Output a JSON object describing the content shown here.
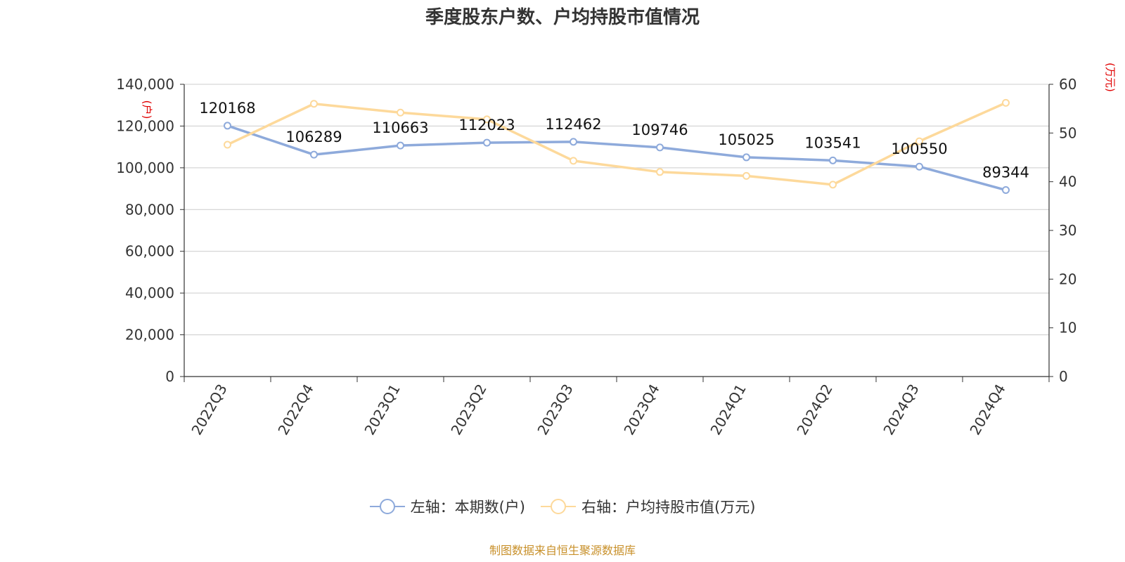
{
  "chart_data": {
    "type": "line",
    "title": "季度股东户数、户均持股市值情况",
    "categories": [
      "2022Q3",
      "2022Q4",
      "2023Q1",
      "2023Q2",
      "2023Q3",
      "2023Q4",
      "2024Q1",
      "2024Q2",
      "2024Q3",
      "2024Q4"
    ],
    "series": [
      {
        "name": "左轴：本期数(户)",
        "axis": "left",
        "color": "#8eaadb",
        "values": [
          120168,
          106289,
          110663,
          112023,
          112462,
          109746,
          105025,
          103541,
          100550,
          89344
        ],
        "data_labels": [
          "120168",
          "106289",
          "110663",
          "112023",
          "112462",
          "109746",
          "105025",
          "103541",
          "100550",
          "89344"
        ]
      },
      {
        "name": "右轴：户均持股市值(万元)",
        "axis": "right",
        "color": "#fdd99b",
        "values": [
          47.6,
          56.0,
          54.2,
          52.8,
          44.3,
          42.0,
          41.2,
          39.4,
          48.3,
          56.2
        ]
      }
    ],
    "left_axis": {
      "unit": "(户)",
      "ylim": [
        0,
        140000
      ],
      "ticks": [
        0,
        20000,
        40000,
        60000,
        80000,
        100000,
        120000,
        140000
      ],
      "tick_labels": [
        "0",
        "20,000",
        "40,000",
        "60,000",
        "80,000",
        "100,000",
        "120,000",
        "140,000"
      ]
    },
    "right_axis": {
      "unit": "(万元)",
      "ylim": [
        0,
        60
      ],
      "ticks": [
        0,
        10,
        20,
        30,
        40,
        50,
        60
      ],
      "tick_labels": [
        "0",
        "10",
        "20",
        "30",
        "40",
        "50",
        "60"
      ]
    },
    "grid": true,
    "legend_position": "bottom"
  },
  "footer": {
    "source": "制图数据来自恒生聚源数据库"
  }
}
